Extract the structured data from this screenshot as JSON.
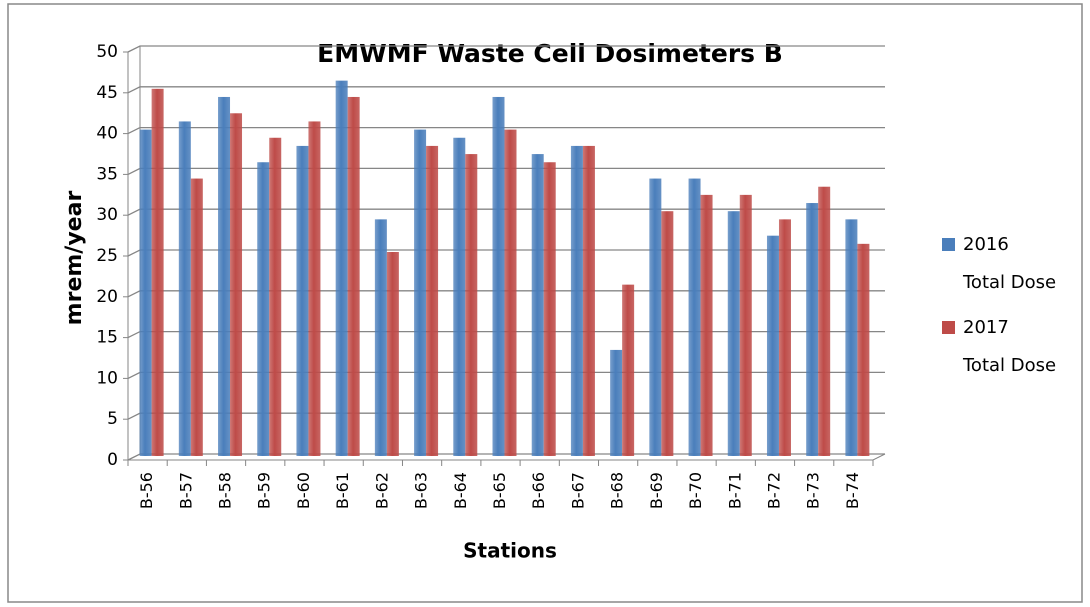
{
  "chart_data": {
    "type": "bar",
    "title": "EMWMF Waste Cell Dosimeters B",
    "x_label": "Stations",
    "y_label": "mrem/year",
    "categories": [
      "B-56",
      "B-57",
      "B-58",
      "B-59",
      "B-60",
      "B-61",
      "B-62",
      "B-63",
      "B-64",
      "B-65",
      "B-66",
      "B-67",
      "B-68",
      "B-69",
      "B-70",
      "B-71",
      "B-72",
      "B-73",
      "B-74"
    ],
    "series": [
      {
        "name": "2016 Total Dose",
        "color": "#4a7ebb",
        "values": [
          40,
          41,
          44,
          36,
          38,
          46,
          29,
          40,
          39,
          44,
          37,
          38,
          13,
          34,
          34,
          30,
          27,
          31,
          29
        ]
      },
      {
        "name": "2017 Total Dose",
        "color": "#be4b48",
        "values": [
          45,
          34,
          42,
          39,
          41,
          44,
          25,
          38,
          37,
          40,
          36,
          38,
          21,
          30,
          32,
          32,
          29,
          33,
          26
        ]
      }
    ],
    "ylim": [
      0,
      50
    ],
    "yticks": [
      0,
      5,
      10,
      15,
      20,
      25,
      30,
      35,
      40,
      45,
      50
    ],
    "grid": true,
    "legend": "right"
  }
}
